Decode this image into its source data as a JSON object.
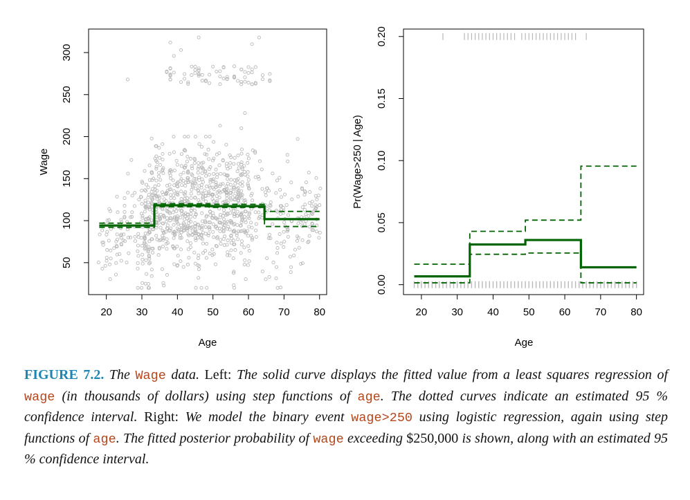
{
  "chart_data": [
    {
      "type": "scatter",
      "xlabel": "Age",
      "ylabel": "Wage",
      "xlim": [
        15,
        82
      ],
      "ylim": [
        12,
        328
      ],
      "xticks": [
        20,
        30,
        40,
        50,
        60,
        70,
        80
      ],
      "yticks": [
        50,
        100,
        150,
        200,
        250,
        300
      ],
      "point_color": "#b8b8b8",
      "fit_color": "#006400",
      "step_fit": {
        "breaks": [
          18,
          33.5,
          49,
          64.5,
          80
        ],
        "fitted": [
          94.2,
          118.2,
          117.3,
          101.8
        ],
        "lower": [
          92.0,
          116.5,
          115.7,
          93.0
        ],
        "upper": [
          97.0,
          120.2,
          119.5,
          111.0
        ]
      },
      "scatter": {
        "high_cluster": {
          "x_range": [
            26,
            66
          ],
          "y_range": [
            258,
            318
          ],
          "n": 70
        },
        "main_cloud": {
          "x_range": [
            18,
            80
          ],
          "y_range": [
            20,
            230
          ],
          "n": 1100
        }
      }
    },
    {
      "type": "line",
      "xlabel": "Age",
      "ylabel": "Pr(Wage>250 | Age)",
      "xlim": [
        15,
        82
      ],
      "ylim": [
        -0.008,
        0.206
      ],
      "xticks": [
        20,
        30,
        40,
        50,
        60,
        70,
        80
      ],
      "yticks": [
        "0.00",
        "0.05",
        "0.10",
        "0.15",
        "0.20"
      ],
      "fit_color": "#006400",
      "rug_color": "#b8b8b8",
      "step_fit": {
        "breaks": [
          18,
          33.5,
          49,
          64.5,
          80
        ],
        "fitted": [
          0.0067,
          0.0324,
          0.036,
          0.014
        ],
        "lower": [
          0.0015,
          0.0245,
          0.0255,
          0.0015
        ],
        "upper": [
          0.0165,
          0.043,
          0.052,
          0.0955
        ]
      },
      "top_rug_ages": [
        26,
        32,
        33,
        34,
        35,
        36,
        37,
        38,
        39,
        40,
        41,
        42,
        43,
        44,
        45,
        46,
        48,
        49,
        50,
        51,
        52,
        53,
        54,
        55,
        56,
        57,
        58,
        59,
        60,
        61,
        62,
        63,
        66
      ]
    }
  ],
  "caption": {
    "label": "FIGURE 7.2.",
    "seg1": "The",
    "code_wage": "Wage",
    "seg2": "data.",
    "seg3": "Left:",
    "seg4": "The solid curve displays the fitted value from a least squares regression of",
    "code_wage2": "wage",
    "seg5": "(in thousands of dollars) using step functions of",
    "code_age": "age",
    "seg6": ". The dotted curves indicate an estimated 95 % confidence interval.",
    "seg7": "Right:",
    "seg8": "We model the binary event",
    "code_event": "wage>250",
    "seg9": "using logistic regression, again using step functions of",
    "code_age2": "age",
    "seg10": ". The fitted posterior probability of",
    "code_wage3": "wage",
    "seg11": "exceeding",
    "money": "$250,000",
    "seg12": "is shown, along with an estimated 95 % confidence interval."
  }
}
